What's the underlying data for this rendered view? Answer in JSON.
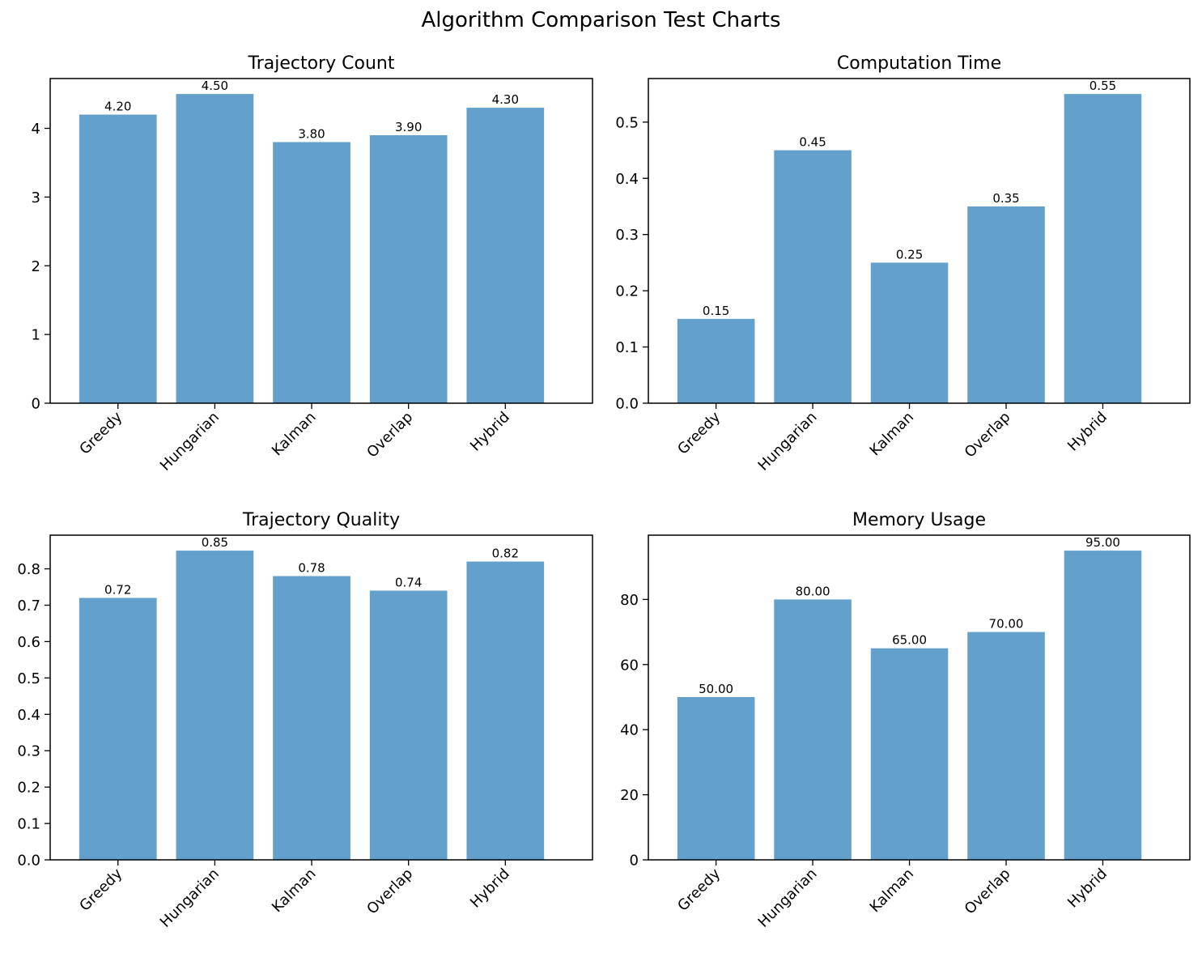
{
  "figure": {
    "title": "Algorithm Comparison Test Charts"
  },
  "colors": {
    "bar": "#63a0cb",
    "axis": "#000000",
    "background": "#ffffff"
  },
  "chart_data": [
    {
      "type": "bar",
      "title": "Trajectory Count",
      "xlabel": "",
      "ylabel": "",
      "categories": [
        "Greedy",
        "Hungarian",
        "Kalman",
        "Overlap",
        "Hybrid"
      ],
      "values": [
        4.2,
        4.5,
        3.8,
        3.9,
        4.3
      ],
      "value_labels": [
        "4.20",
        "4.50",
        "3.80",
        "3.90",
        "4.30"
      ],
      "ylim": [
        0,
        4.725
      ],
      "yticks": [
        0,
        1,
        2,
        3,
        4
      ],
      "ytick_labels": [
        "0",
        "1",
        "2",
        "3",
        "4"
      ],
      "grid": false,
      "legend": "none"
    },
    {
      "type": "bar",
      "title": "Computation Time",
      "xlabel": "",
      "ylabel": "",
      "categories": [
        "Greedy",
        "Hungarian",
        "Kalman",
        "Overlap",
        "Hybrid"
      ],
      "values": [
        0.15,
        0.45,
        0.25,
        0.35,
        0.55
      ],
      "value_labels": [
        "0.15",
        "0.45",
        "0.25",
        "0.35",
        "0.55"
      ],
      "ylim": [
        0,
        0.5775
      ],
      "yticks": [
        0,
        0.1,
        0.2,
        0.3,
        0.4,
        0.5
      ],
      "ytick_labels": [
        "0.0",
        "0.1",
        "0.2",
        "0.3",
        "0.4",
        "0.5"
      ],
      "grid": false,
      "legend": "none"
    },
    {
      "type": "bar",
      "title": "Trajectory Quality",
      "xlabel": "",
      "ylabel": "",
      "categories": [
        "Greedy",
        "Hungarian",
        "Kalman",
        "Overlap",
        "Hybrid"
      ],
      "values": [
        0.72,
        0.85,
        0.78,
        0.74,
        0.82
      ],
      "value_labels": [
        "0.72",
        "0.85",
        "0.78",
        "0.74",
        "0.82"
      ],
      "ylim": [
        0,
        0.8925
      ],
      "yticks": [
        0,
        0.1,
        0.2,
        0.3,
        0.4,
        0.5,
        0.6,
        0.7,
        0.8
      ],
      "ytick_labels": [
        "0.0",
        "0.1",
        "0.2",
        "0.3",
        "0.4",
        "0.5",
        "0.6",
        "0.7",
        "0.8"
      ],
      "grid": false,
      "legend": "none"
    },
    {
      "type": "bar",
      "title": "Memory Usage",
      "xlabel": "",
      "ylabel": "",
      "categories": [
        "Greedy",
        "Hungarian",
        "Kalman",
        "Overlap",
        "Hybrid"
      ],
      "values": [
        50,
        80,
        65,
        70,
        95
      ],
      "value_labels": [
        "50.00",
        "80.00",
        "65.00",
        "70.00",
        "95.00"
      ],
      "ylim": [
        0,
        99.75
      ],
      "yticks": [
        0,
        20,
        40,
        60,
        80
      ],
      "ytick_labels": [
        "0",
        "20",
        "40",
        "60",
        "80"
      ],
      "grid": false,
      "legend": "none"
    }
  ]
}
